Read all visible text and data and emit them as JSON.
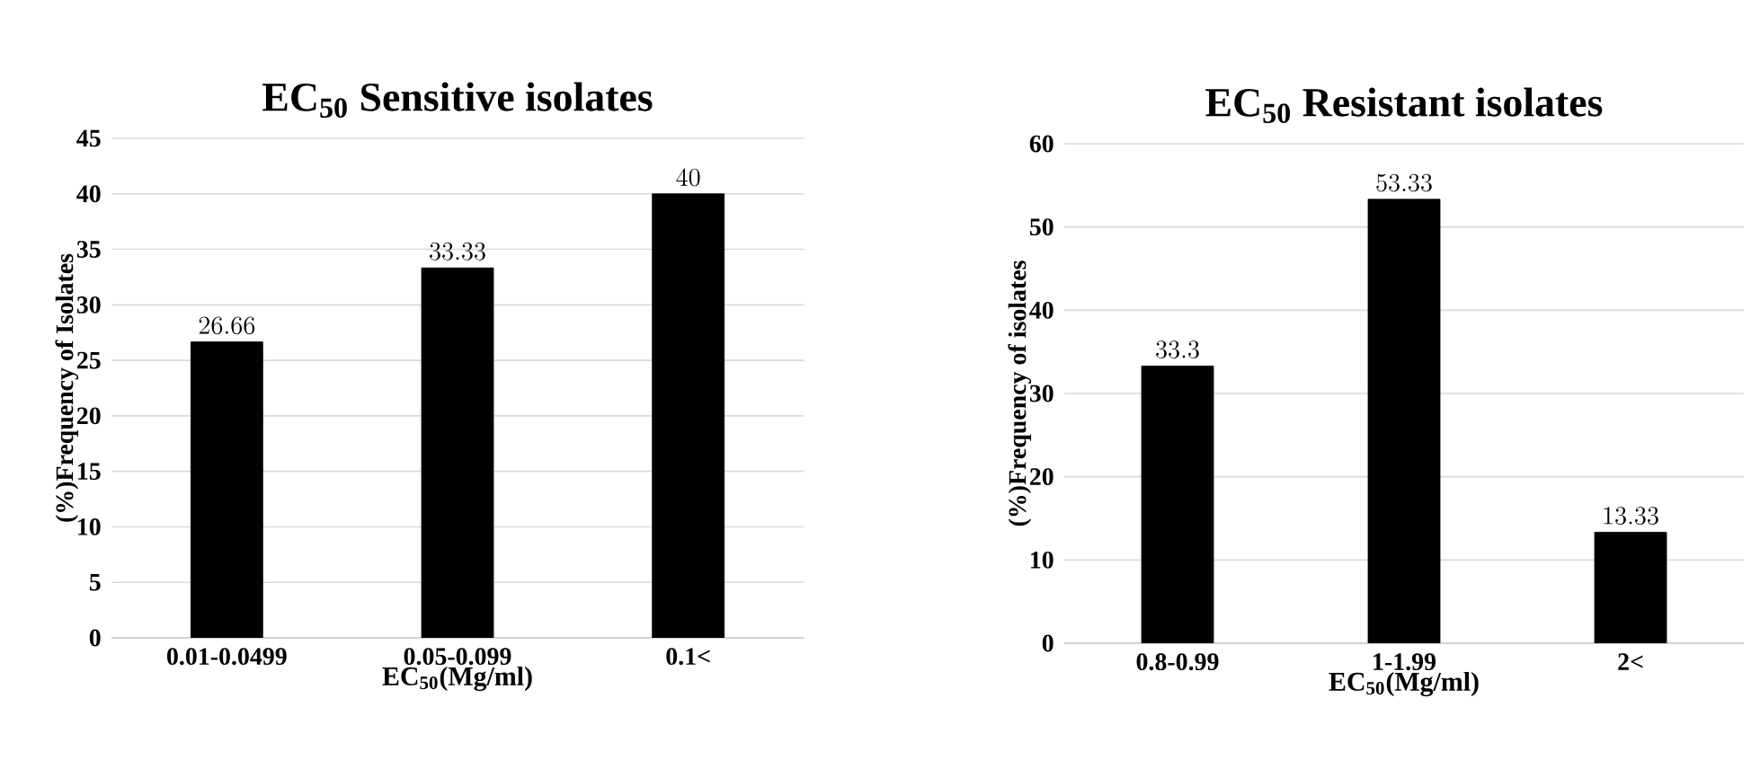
{
  "chart_data": [
    {
      "type": "bar",
      "title": "EC$_{50}$ Sensitive isolates",
      "xlabel": "EC$_{50}$(Mg/ml)",
      "ylabel": "(%)Frequency of Isolates",
      "categories": [
        "0.01-0.0499",
        "0.05-0.099",
        "0.1<"
      ],
      "values": [
        26.66,
        33.33,
        40
      ],
      "color": "#000000",
      "ylim": [
        0,
        45
      ],
      "yticks": [
        0,
        5,
        10,
        15,
        20,
        25,
        30,
        35,
        40,
        45
      ],
      "grid": "y",
      "data_labels": true
    },
    {
      "type": "bar",
      "title": "EC$_{50}$ Resistant isolates",
      "xlabel": "EC$_{50}$(Mg/ml)",
      "ylabel": "(%)Frequency of isolates",
      "categories": [
        "0.8-0.99",
        "1-1.99",
        "2<"
      ],
      "values": [
        33.3,
        53.33,
        13.33
      ],
      "color": "#000000",
      "ylim": [
        0,
        60
      ],
      "yticks": [
        0,
        10,
        20,
        30,
        40,
        50,
        60
      ],
      "grid": "y",
      "data_labels": true
    }
  ]
}
